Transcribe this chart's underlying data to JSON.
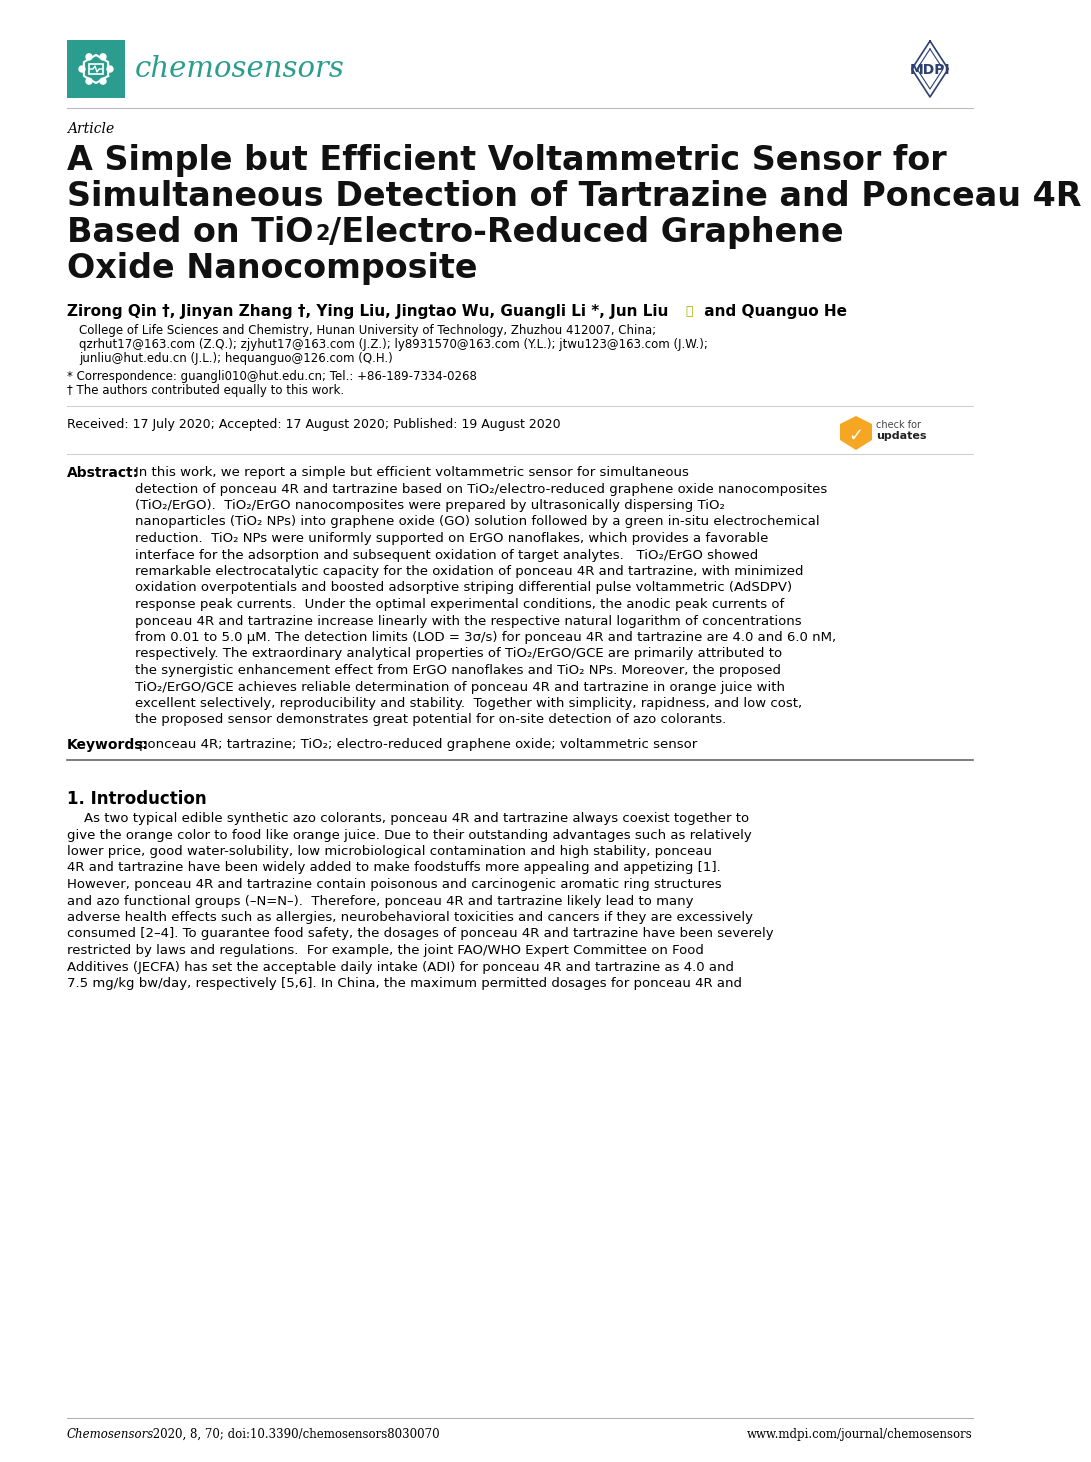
{
  "journal_name": "chemosensors",
  "journal_color": "#2a9d8f",
  "mdpi_color": "#2e4070",
  "article_label": "Article",
  "title_line1": "A Simple but Efficient Voltammetric Sensor for",
  "title_line2": "Simultaneous Detection of Tartrazine and Ponceau 4R",
  "title_line3": "Based on TiO₂/Electro-Reduced Graphene",
  "title_line4": "Oxide Nanocomposite",
  "authors": "Zirong Qin †, Jinyan Zhang †, Ying Liu, Jingtao Wu, Guangli Li *, Jun Liu",
  "authors2": " and Quanguo He",
  "affil1": "College of Life Sciences and Chemistry, Hunan University of Technology, Zhuzhou 412007, China;",
  "affil2": "qzrhut17@163.com (Z.Q.); zjyhut17@163.com (J.Z.); ly8931570@163.com (Y.L.); jtwu123@163.com (J.W.);",
  "affil3": "junliu@hut.edu.cn (J.L.); hequanguo@126.com (Q.H.)",
  "correspondence": "* Correspondence: guangli010@hut.edu.cn; Tel.: +86-189-7334-0268",
  "dagger": "† The authors contributed equally to this work.",
  "received": "Received: 17 July 2020; Accepted: 17 August 2020; Published: 19 August 2020",
  "abstract_label": "Abstract:",
  "abstract_body": "In this work, we report a simple but efficient voltammetric sensor for simultaneous detection of ponceau 4R and tartrazine based on TiO₂/electro-reduced graphene oxide nanocomposites (TiO₂/ErGO). TiO₂/ErGO nanocomposites were prepared by ultrasonically dispersing TiO₂ nanoparticles (TiO₂ NPs) into graphene oxide (GO) solution followed by a green in-situ electrochemical reduction. TiO₂ NPs were uniformly supported on ErGO nanoflakes, which provides a favorable interface for the adsorption and subsequent oxidation of target analytes. TiO₂/ErGO showed remarkable electrocatalytic capacity for the oxidation of ponceau 4R and tartrazine, with minimized oxidation overpotentials and boosted adsorptive striping differential pulse voltammetric (AdSDPV) response peak currents. Under the optimal experimental conditions, the anodic peak currents of ponceau 4R and tartrazine increase linearly with the respective natural logarithm of concentrations from 0.01 to 5.0 μM. The detection limits (LOD = 3σ/s) for ponceau 4R and tartrazine are 4.0 and 6.0 nM, respectively. The extraordinary analytical properties of TiO₂/ErGO/GCE are primarily attributed to the synergistic enhancement effect from ErGO nanoflakes and TiO₂ NPs. Moreover, the proposed TiO₂/ErGO/GCE achieves reliable determination of ponceau 4R and tartrazine in orange juice with excellent selectively, reproducibility and stability. Together with simplicity, rapidness, and low cost, the proposed sensor demonstrates great potential for on-site detection of azo colorants.",
  "keywords_label": "Keywords:",
  "keywords_body": "ponceau 4R; tartrazine; TiO₂; electro-reduced graphene oxide; voltammetric sensor",
  "section_title": "1. Introduction",
  "intro_para": "As two typical edible synthetic azo colorants, ponceau 4R and tartrazine always coexist together to give the orange color to food like orange juice. Due to their outstanding advantages such as relatively lower price, good water-solubility, low microbiological contamination and high stability, ponceau 4R and tartrazine have been widely added to make foodstuffs more appealing and appetizing [1]. However, ponceau 4R and tartrazine contain poisonous and carcinogenic aromatic ring structures and azo functional groups (–N=N–). Therefore, ponceau 4R and tartrazine likely lead to many adverse health effects such as allergies, neurobehavioral toxicities and cancers if they are excessively consumed [2–4]. To guarantee food safety, the dosages of ponceau 4R and tartrazine have been severely restricted by laws and regulations. For example, the joint FAO/WHO Expert Committee on Food Additives (JECFA) has set the acceptable daily intake (ADI) for ponceau 4R and tartrazine as 4.0 and 7.5 mg/kg bw/day, respectively [5,6]. In China, the maximum permitted dosages for ponceau 4R and",
  "footer_left": "Chemosensors 2020, 8, 70; doi:10.3390/chemosensors8030070",
  "footer_right": "www.mdpi.com/journal/chemosensors",
  "bg_color": "#ffffff",
  "text_color": "#000000"
}
